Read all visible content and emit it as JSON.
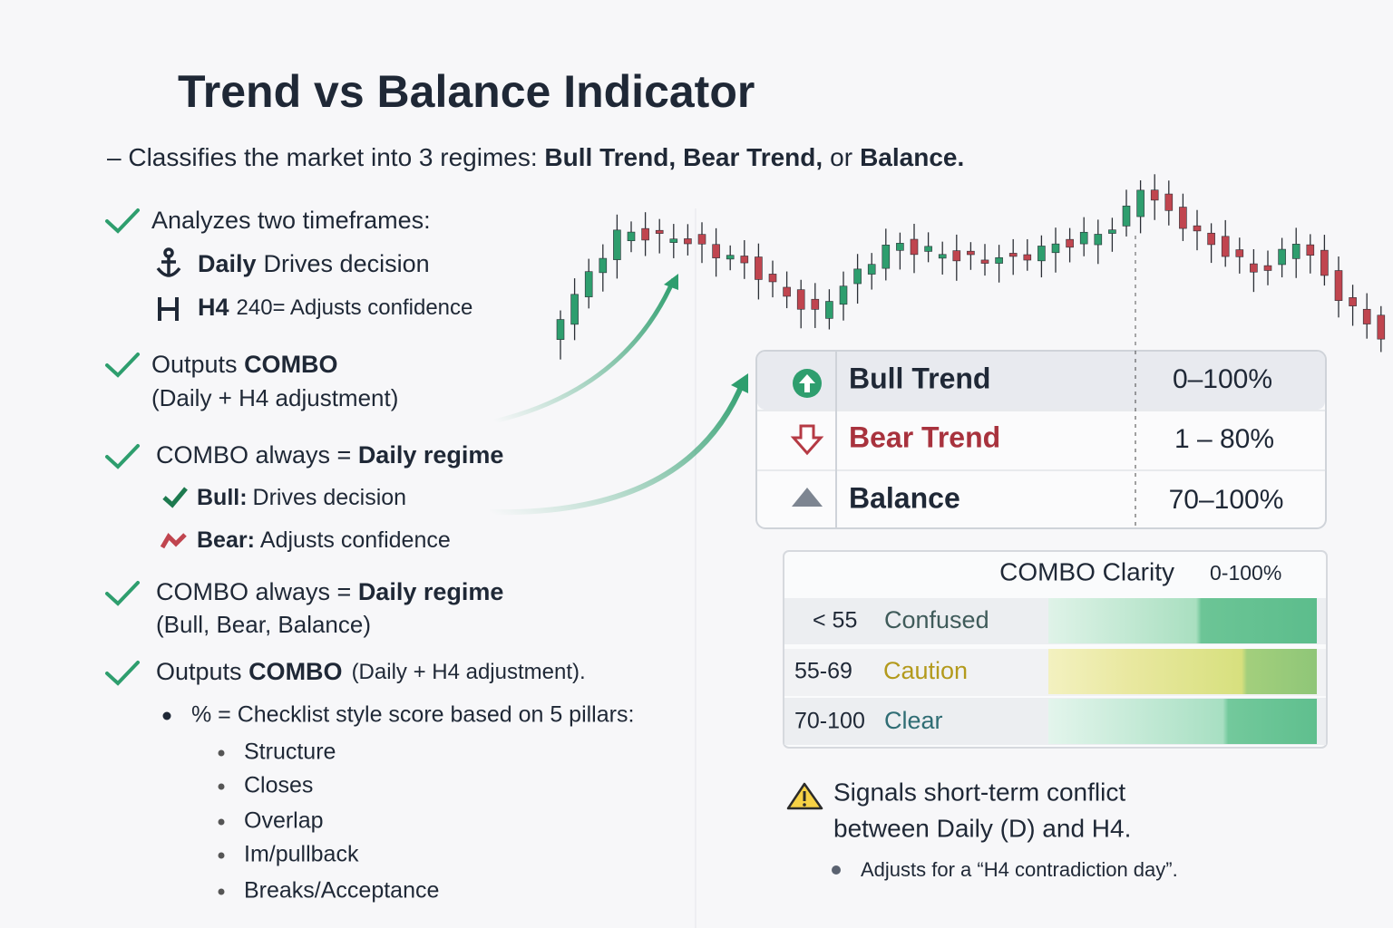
{
  "header": {
    "title": "Trend vs Balance Indicator"
  },
  "intro": {
    "lead": "– Classifies the market into 3 regimes: ",
    "bull": "Bull Trend,",
    "bear": "Bear Trend,",
    "or": "or",
    "balance": "Balance."
  },
  "items": [
    {
      "text": "Analyzes two timeframes:",
      "subs": [
        {
          "bold": "Daily",
          "text": "Drives decision"
        },
        {
          "bold": "H4",
          "text": "240= Adjusts confidence"
        }
      ]
    },
    {
      "text": "Outputs ",
      "bold": "COMBO",
      "line2": "(Daily + H4 adjustment)"
    },
    {
      "text": "COMBO always = ",
      "bold": "Daily regime",
      "subs": [
        {
          "bold": "Bull:",
          "text": "Drives decision"
        },
        {
          "bold": "Bear:",
          "text": "Adjusts confidence"
        }
      ]
    },
    {
      "text": "COMBO always = ",
      "bold": "Daily regime",
      "line2": "(Bull, Bear, Balance)"
    },
    {
      "text": "Outputs ",
      "bold": "COMBO",
      "tail": "(Daily + H4 adjustment).",
      "bullet": "% = Checklist style score based on 5 pillars:",
      "pillars": [
        "Structure",
        "Closes",
        "Overlap",
        "Im/pullback",
        "Breaks/Acceptance"
      ]
    }
  ],
  "regimes": [
    {
      "name": "Bull Trend",
      "range": "0–100%"
    },
    {
      "name": "Bear Trend",
      "range": "1 – 80%"
    },
    {
      "name": "Balance",
      "range": "70–100%"
    }
  ],
  "clarity": {
    "title": "COMBO Clarity",
    "range": "0-100%",
    "rows": [
      {
        "threshold": "< 55",
        "label": "Confused"
      },
      {
        "threshold": "55-69",
        "label": "Caution"
      },
      {
        "threshold": "70-100",
        "label": "Clear"
      }
    ]
  },
  "warning": {
    "line1": "Signals short-term conflict",
    "line2": "between Daily (D) and H4.",
    "bullet": "Adjusts for a “H4 contradiction day”."
  }
}
